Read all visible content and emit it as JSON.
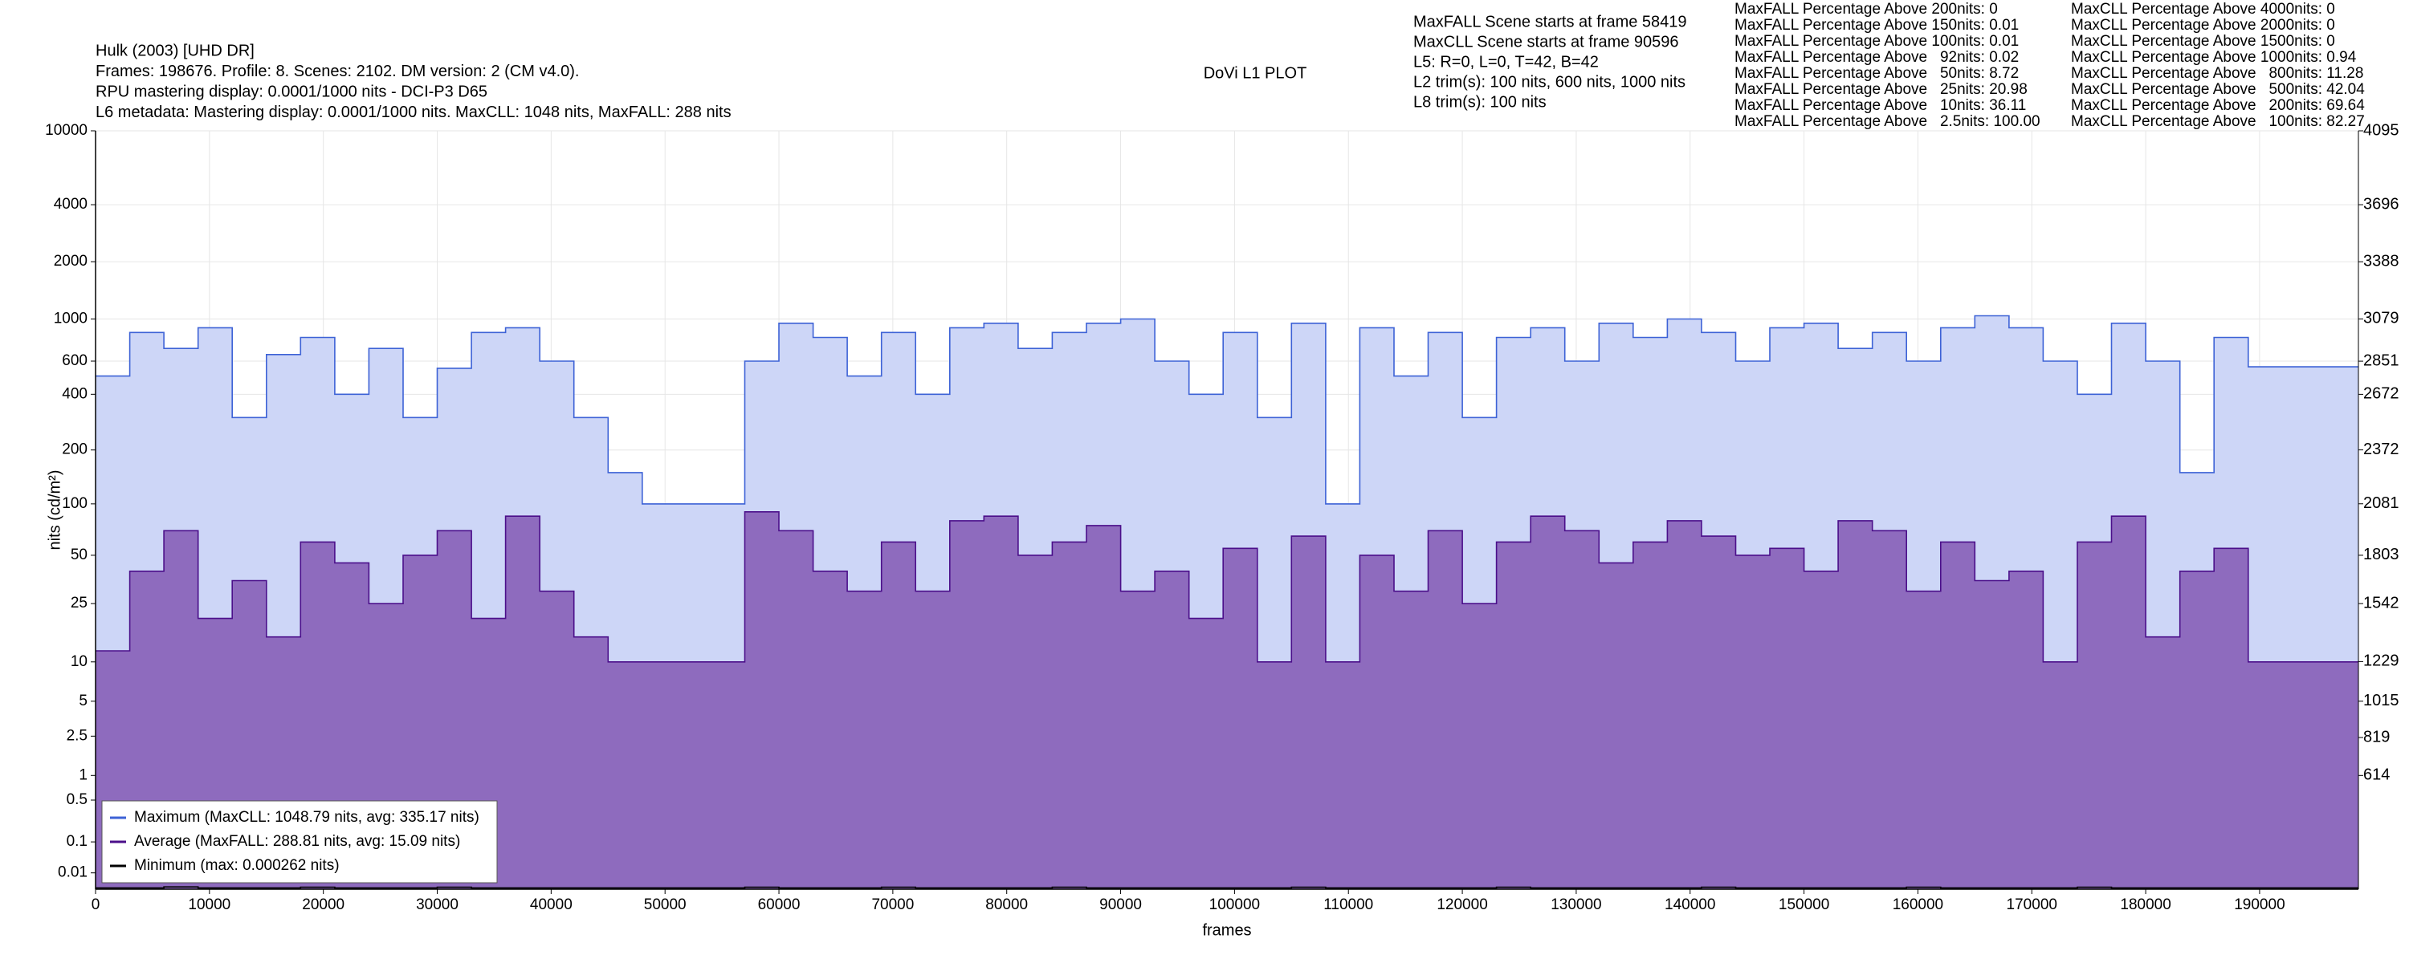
{
  "header": {
    "info_lines": [
      "Hulk (2003) [UHD DR]",
      "Frames: 198676. Profile: 8. Scenes: 2102. DM version: 2 (CM v4.0).",
      "RPU mastering display: 0.0001/1000 nits - DCI-P3 D65",
      "L6 metadata: Mastering display: 0.0001/1000 nits. MaxCLL: 1048 nits, MaxFALL: 288 nits"
    ],
    "plot_title": "DoVi L1 PLOT",
    "scene_lines": [
      "MaxFALL Scene starts at frame 58419",
      "MaxCLL Scene starts at frame 90596",
      "L5: R=0, L=0, T=42, B=42",
      "L2 trim(s): 100 nits, 600 nits, 1000 nits",
      "L8 trim(s): 100 nits"
    ],
    "maxfall_stats": [
      "MaxFALL Percentage Above 200nits: 0",
      "MaxFALL Percentage Above 150nits: 0.01",
      "MaxFALL Percentage Above 100nits: 0.01",
      "MaxFALL Percentage Above   92nits: 0.02",
      "MaxFALL Percentage Above   50nits: 8.72",
      "MaxFALL Percentage Above   25nits: 20.98",
      "MaxFALL Percentage Above   10nits: 36.11",
      "MaxFALL Percentage Above   2.5nits: 100.00"
    ],
    "maxcll_stats": [
      "MaxCLL Percentage Above 4000nits: 0",
      "MaxCLL Percentage Above 2000nits: 0",
      "MaxCLL Percentage Above 1500nits: 0",
      "MaxCLL Percentage Above 1000nits: 0.94",
      "MaxCLL Percentage Above   800nits: 11.28",
      "MaxCLL Percentage Above   500nits: 42.04",
      "MaxCLL Percentage Above   200nits: 69.64",
      "MaxCLL Percentage Above   100nits: 82.27"
    ]
  },
  "chart_data": {
    "type": "line",
    "xlabel": "frames",
    "ylabel": "nits (cd/m²)",
    "yscale": "pq",
    "xlim": [
      0,
      198676
    ],
    "xticks": [
      0,
      10000,
      20000,
      30000,
      40000,
      50000,
      60000,
      70000,
      80000,
      90000,
      100000,
      110000,
      120000,
      130000,
      140000,
      150000,
      160000,
      170000,
      180000,
      190000
    ],
    "ylim": [
      0,
      10000
    ],
    "yticks": [
      10000,
      4000,
      2000,
      1000,
      600,
      400,
      200,
      100,
      50,
      25,
      10,
      5,
      2.5,
      1,
      0.5,
      0.1,
      0.01
    ],
    "y2lim": [
      0,
      4095
    ],
    "y2ticks": [
      4095,
      3696,
      3388,
      3079,
      2851,
      2672,
      2372,
      2081,
      1803,
      1542,
      1229,
      1015,
      819,
      614
    ],
    "grid": true,
    "legend": "lower left",
    "x": [
      0,
      3000,
      6000,
      9000,
      12000,
      15000,
      18000,
      21000,
      24000,
      27000,
      30000,
      33000,
      36000,
      39000,
      42000,
      45000,
      48000,
      51000,
      54000,
      57000,
      60000,
      63000,
      66000,
      69000,
      72000,
      75000,
      78000,
      81000,
      84000,
      87000,
      90000,
      93000,
      96000,
      99000,
      102000,
      105000,
      108000,
      111000,
      114000,
      117000,
      120000,
      123000,
      126000,
      129000,
      132000,
      135000,
      138000,
      141000,
      144000,
      147000,
      150000,
      153000,
      156000,
      159000,
      162000,
      165000,
      168000,
      171000,
      174000,
      177000,
      180000,
      183000,
      186000,
      189000
    ],
    "series": [
      {
        "name": "Maximum (MaxCLL: 1048.79 nits, avg: 335.17 nits)",
        "color": "#3d62d6",
        "fill": "#cdd6f7",
        "values": [
          500,
          850,
          700,
          900,
          300,
          650,
          800,
          400,
          700,
          300,
          550,
          850,
          900,
          600,
          300,
          150,
          100,
          100,
          100,
          600,
          950,
          800,
          500,
          850,
          400,
          900,
          950,
          700,
          850,
          950,
          1000,
          600,
          400,
          850,
          300,
          950,
          100,
          900,
          500,
          850,
          300,
          800,
          900,
          600,
          950,
          800,
          1000,
          850,
          600,
          900,
          950,
          700,
          850,
          600,
          900,
          1040,
          900,
          600,
          400,
          950,
          600,
          150,
          800,
          560
        ]
      },
      {
        "name": "Average (MaxFALL: 288.81 nits, avg: 15.09 nits)",
        "color": "#4b0f8a",
        "fill": "#8e6bbe",
        "values": [
          12,
          40,
          70,
          20,
          35,
          15,
          60,
          45,
          25,
          50,
          70,
          20,
          85,
          30,
          15,
          10,
          10,
          10,
          10,
          90,
          70,
          40,
          30,
          60,
          30,
          80,
          85,
          50,
          60,
          75,
          30,
          40,
          20,
          55,
          10,
          65,
          10,
          50,
          30,
          70,
          25,
          60,
          85,
          70,
          45,
          60,
          80,
          65,
          50,
          55,
          40,
          80,
          70,
          30,
          60,
          35,
          40,
          10,
          60,
          85,
          15,
          40,
          55,
          10
        ]
      },
      {
        "name": "Minimum (max: 0.000262 nits)",
        "color": "#000000",
        "values": [
          0.0001,
          0.0001,
          0.000262,
          0.0001,
          0.0001,
          0.0001,
          0.0002,
          0.0001,
          0.0001,
          0.0001,
          0.0002,
          0.0001,
          0.0001,
          0.0001,
          0.0001,
          0.0001,
          0.0001,
          0.0001,
          0.0001,
          0.0002,
          0.0001,
          0.0001,
          0.0001,
          0.0002,
          0.0001,
          0.0001,
          0.0001,
          0.0001,
          0.0002,
          0.0001,
          0.0001,
          0.0001,
          0.0001,
          0.0001,
          0.0001,
          0.0002,
          0.0001,
          0.0001,
          0.0001,
          0.0001,
          0.0001,
          0.0002,
          0.0001,
          0.0001,
          0.0001,
          0.0001,
          0.0001,
          0.0002,
          0.0001,
          0.0001,
          0.0001,
          0.0001,
          0.0001,
          0.0002,
          0.0001,
          0.0001,
          0.0001,
          0.0001,
          0.0002,
          0.0001,
          0.0001,
          0.0001,
          0.0001,
          0.0001
        ]
      }
    ]
  }
}
